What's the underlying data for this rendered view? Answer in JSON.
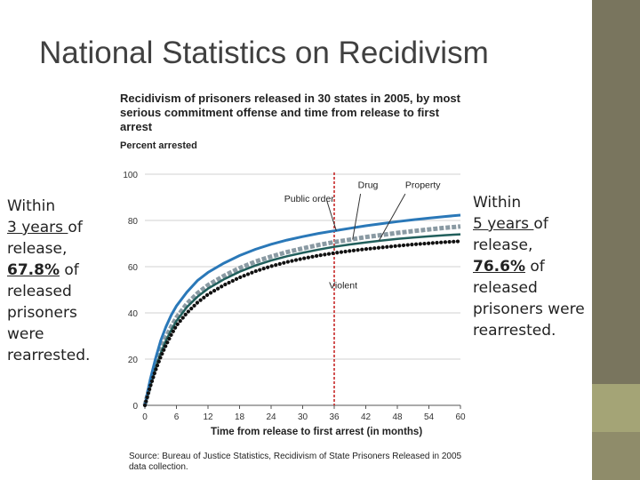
{
  "slide": {
    "title": "National Statistics on Recidivism",
    "left_note": {
      "p1": "Within",
      "years": "3 years ",
      "p2": "of release, ",
      "pct": "67.8%",
      "p3": " of released prisoners were rearrested."
    },
    "right_note": {
      "p1": "Within",
      "years": "5 years ",
      "p2": "of release, ",
      "pct": "76.6%",
      "p3": " of released prisoners were rearrested."
    }
  },
  "colors": {
    "public_order": "#2a78b8",
    "drug": "#8a9aa3",
    "property": "#215f5c",
    "violent": "#111111",
    "marker": "#c62828",
    "sidebar": "#79755e"
  },
  "chart_data": {
    "type": "line",
    "title": "Recidivism of prisoners released in 30 states in 2005, by most serious commitment offense and time from release to first arrest",
    "ylabel": "Percent arrested",
    "xlabel": "Time from release to first arrest (in months)",
    "source": "Source: Bureau of Justice Statistics, Recidivism of State Prisoners Released in 2005 data collection.",
    "xlim": [
      0,
      60
    ],
    "ylim": [
      0,
      100
    ],
    "x_ticks": [
      0,
      6,
      12,
      18,
      24,
      30,
      36,
      42,
      48,
      54,
      60
    ],
    "y_ticks": [
      0,
      20,
      40,
      60,
      80,
      100
    ],
    "reference_x": 36,
    "x": [
      0,
      1,
      2,
      3,
      4,
      5,
      6,
      8,
      10,
      12,
      15,
      18,
      21,
      24,
      27,
      30,
      33,
      36,
      39,
      42,
      45,
      48,
      51,
      54,
      57,
      60
    ],
    "series": [
      {
        "name": "Public order",
        "style": "solid-blue",
        "values": [
          0,
          11,
          20,
          28,
          34,
          39,
          43,
          49,
          54,
          57.5,
          61.5,
          64.8,
          67.5,
          69.7,
          71.5,
          73,
          74.4,
          75.5,
          76.6,
          77.7,
          78.6,
          79.5,
          80.3,
          81,
          81.7,
          82.3
        ]
      },
      {
        "name": "Drug",
        "style": "dashed-gray",
        "values": [
          0,
          9,
          17,
          24,
          29.5,
          34,
          38,
          44,
          48.5,
          52,
          56,
          59.4,
          62.2,
          64.4,
          66.3,
          67.9,
          69.4,
          70.6,
          71.7,
          72.8,
          73.7,
          74.6,
          75.4,
          76.1,
          76.8,
          77.4
        ]
      },
      {
        "name": "Property",
        "style": "solid-teal",
        "values": [
          0,
          8.5,
          16,
          22.5,
          28,
          32.5,
          36.5,
          42.5,
          47,
          50.5,
          54.5,
          57.8,
          60.5,
          62.7,
          64.5,
          66,
          67.4,
          68.6,
          69.6,
          70.5,
          71.3,
          72,
          72.6,
          73.1,
          73.6,
          74
        ]
      },
      {
        "name": "Violent",
        "style": "dotted-black",
        "values": [
          0,
          8,
          15,
          21,
          26,
          30.5,
          34.5,
          40,
          44.5,
          48,
          52,
          55.3,
          58,
          60.2,
          62,
          63.5,
          64.8,
          65.9,
          66.8,
          67.6,
          68.3,
          69,
          69.6,
          70.1,
          70.6,
          71
        ]
      }
    ],
    "annotations": [
      "Public order",
      "Drug",
      "Property",
      "Violent"
    ]
  }
}
